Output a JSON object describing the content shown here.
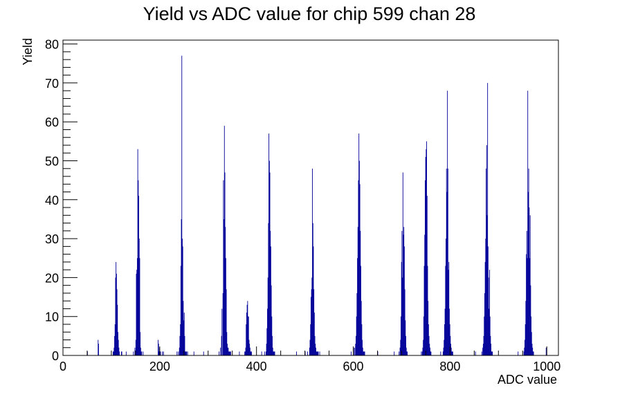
{
  "chart_data": {
    "type": "bar",
    "title": "Yield vs ADC value for chip 599 chan 28",
    "xlabel": "ADC value",
    "ylabel": "Yield",
    "xlim": [
      0,
      1024
    ],
    "ylim": [
      0,
      81
    ],
    "x_ticks": [
      0,
      200,
      400,
      600,
      800,
      1000
    ],
    "y_ticks": [
      0,
      10,
      20,
      30,
      40,
      50,
      60,
      70,
      80
    ],
    "grid": false,
    "legend": "none",
    "bin_width": 1,
    "series_color": "#000099",
    "series": [
      {
        "x": [
          50,
          72,
          73,
          103,
          104,
          105,
          106,
          107,
          108,
          109,
          110,
          111,
          112,
          113,
          114,
          115,
          116,
          120,
          121,
          130,
          145,
          148,
          150,
          151,
          152,
          153,
          154,
          155,
          156,
          157,
          158,
          159,
          160,
          161,
          162,
          165,
          196,
          197,
          198,
          199,
          200,
          201,
          205,
          207,
          235,
          238,
          240,
          241,
          242,
          243,
          244,
          245,
          246,
          247,
          248,
          249,
          250,
          251,
          252,
          253,
          254,
          255,
          257,
          270,
          290,
          322,
          325,
          327,
          328,
          330,
          331,
          332,
          333,
          334,
          335,
          336,
          337,
          338,
          339,
          340,
          341,
          342,
          343,
          344,
          345,
          346,
          364,
          375,
          376,
          377,
          378,
          379,
          380,
          381,
          382,
          383,
          384,
          385,
          386,
          387,
          388,
          389,
          410,
          416,
          419,
          420,
          421,
          422,
          423,
          424,
          425,
          426,
          427,
          428,
          429,
          430,
          431,
          432,
          433,
          434,
          435,
          436,
          437,
          482,
          500,
          505,
          509,
          510,
          511,
          512,
          513,
          514,
          515,
          516,
          517,
          518,
          519,
          520,
          521,
          522,
          523,
          524,
          525,
          526,
          527,
          530,
          595,
          600,
          602,
          604,
          605,
          606,
          607,
          608,
          609,
          610,
          611,
          612,
          613,
          614,
          615,
          616,
          617,
          618,
          619,
          620,
          621,
          622,
          623,
          650,
          684,
          694,
          696,
          697,
          698,
          699,
          700,
          701,
          702,
          703,
          704,
          705,
          706,
          707,
          708,
          709,
          710,
          711,
          740,
          742,
          743,
          744,
          745,
          746,
          747,
          748,
          749,
          750,
          751,
          752,
          753,
          754,
          755,
          756,
          757,
          758,
          759,
          760,
          780,
          785,
          786,
          787,
          788,
          789,
          790,
          791,
          792,
          793,
          794,
          795,
          796,
          797,
          798,
          799,
          800,
          801,
          802,
          803,
          804,
          805,
          852,
          865,
          867,
          868,
          869,
          870,
          871,
          872,
          873,
          874,
          875,
          876,
          877,
          878,
          879,
          880,
          881,
          882,
          883,
          884,
          885,
          886,
          887,
          940,
          952,
          953,
          954,
          955,
          956,
          957,
          958,
          959,
          960,
          961,
          962,
          963,
          964,
          965,
          966,
          967,
          968,
          969,
          970,
          971,
          972,
          998
        ],
        "values": [
          1,
          4,
          3,
          1,
          1,
          2,
          5,
          8,
          20,
          24,
          21,
          17,
          13,
          6,
          4,
          2,
          1,
          1,
          1,
          1,
          1,
          2,
          4,
          21,
          22,
          25,
          53,
          45,
          41,
          30,
          25,
          6,
          2,
          1,
          1,
          1,
          4,
          3,
          1,
          2,
          1,
          1,
          1,
          1,
          1,
          1,
          2,
          5,
          8,
          23,
          35,
          77,
          30,
          28,
          14,
          9,
          11,
          5,
          1,
          1,
          1,
          1,
          1,
          1,
          1,
          1,
          2,
          5,
          12,
          16,
          45,
          35,
          59,
          47,
          33,
          25,
          17,
          6,
          3,
          2,
          2,
          1,
          1,
          1,
          1,
          1,
          1,
          1,
          1,
          2,
          8,
          11,
          13,
          14,
          10,
          10,
          4,
          3,
          2,
          1,
          1,
          1,
          1,
          1,
          1,
          3,
          7,
          12,
          20,
          34,
          57,
          50,
          47,
          32,
          28,
          18,
          10,
          5,
          2,
          1,
          1,
          1,
          1,
          1,
          1,
          1,
          2,
          4,
          8,
          15,
          17,
          20,
          48,
          34,
          28,
          17,
          11,
          5,
          3,
          2,
          1,
          1,
          1,
          1,
          1,
          1,
          1,
          2,
          2,
          3,
          5,
          10,
          16,
          25,
          33,
          45,
          57,
          50,
          44,
          32,
          23,
          14,
          8,
          4,
          2,
          1,
          1,
          1,
          1,
          1,
          1,
          1,
          2,
          4,
          10,
          24,
          32,
          20,
          47,
          31,
          33,
          28,
          17,
          9,
          5,
          2,
          1,
          1,
          1,
          1,
          2,
          4,
          10,
          23,
          31,
          45,
          51,
          53,
          55,
          41,
          23,
          14,
          8,
          5,
          3,
          2,
          1,
          1,
          1,
          1,
          2,
          4,
          8,
          12,
          23,
          30,
          48,
          42,
          68,
          48,
          22,
          24,
          12,
          8,
          5,
          3,
          2,
          1,
          1,
          1,
          1,
          1,
          2,
          3,
          5,
          10,
          16,
          24,
          30,
          48,
          54,
          36,
          70,
          28,
          20,
          12,
          22,
          10,
          5,
          3,
          1,
          1,
          1,
          1,
          1,
          2,
          4,
          8,
          14,
          26,
          32,
          25,
          68,
          42,
          48,
          38,
          25,
          36,
          18,
          10,
          6,
          3,
          2,
          1,
          1,
          2
        ]
      }
    ]
  }
}
